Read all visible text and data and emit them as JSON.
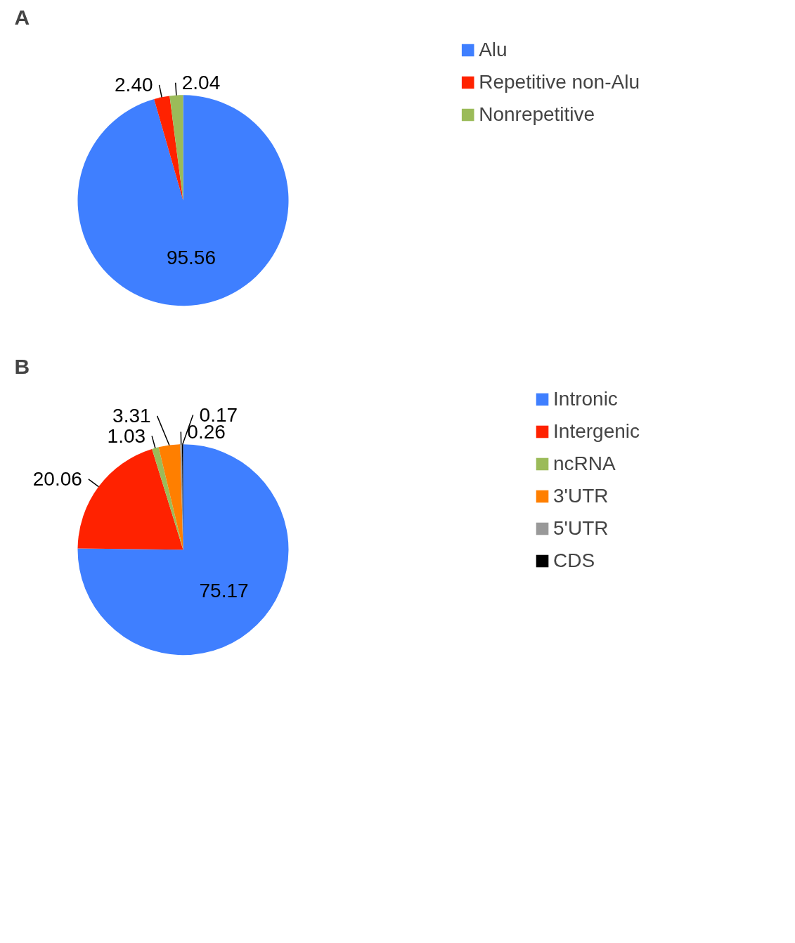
{
  "chart_data": [
    {
      "type": "pie",
      "title": "A",
      "categories": [
        "Alu",
        "Repetitive non-Alu",
        "Nonrepetitive"
      ],
      "values": [
        95.56,
        2.4,
        2.04
      ],
      "colors": [
        "#3f7fff",
        "#ff2200",
        "#9bbb59"
      ],
      "value_labels": [
        "95.56",
        "2.40",
        "2.04"
      ],
      "legend": "right"
    },
    {
      "type": "pie",
      "title": "B",
      "categories": [
        "Intronic",
        "Intergenic",
        "ncRNA",
        "3'UTR",
        "5'UTR",
        "CDS"
      ],
      "values": [
        75.17,
        20.06,
        1.03,
        3.31,
        0.26,
        0.17
      ],
      "colors": [
        "#3f7fff",
        "#ff2200",
        "#9bbb59",
        "#ff7f00",
        "#999999",
        "#000000"
      ],
      "value_labels": [
        "75.17",
        "20.06",
        "1.03",
        "3.31",
        "0.26",
        "0.17"
      ],
      "legend": "right"
    }
  ]
}
